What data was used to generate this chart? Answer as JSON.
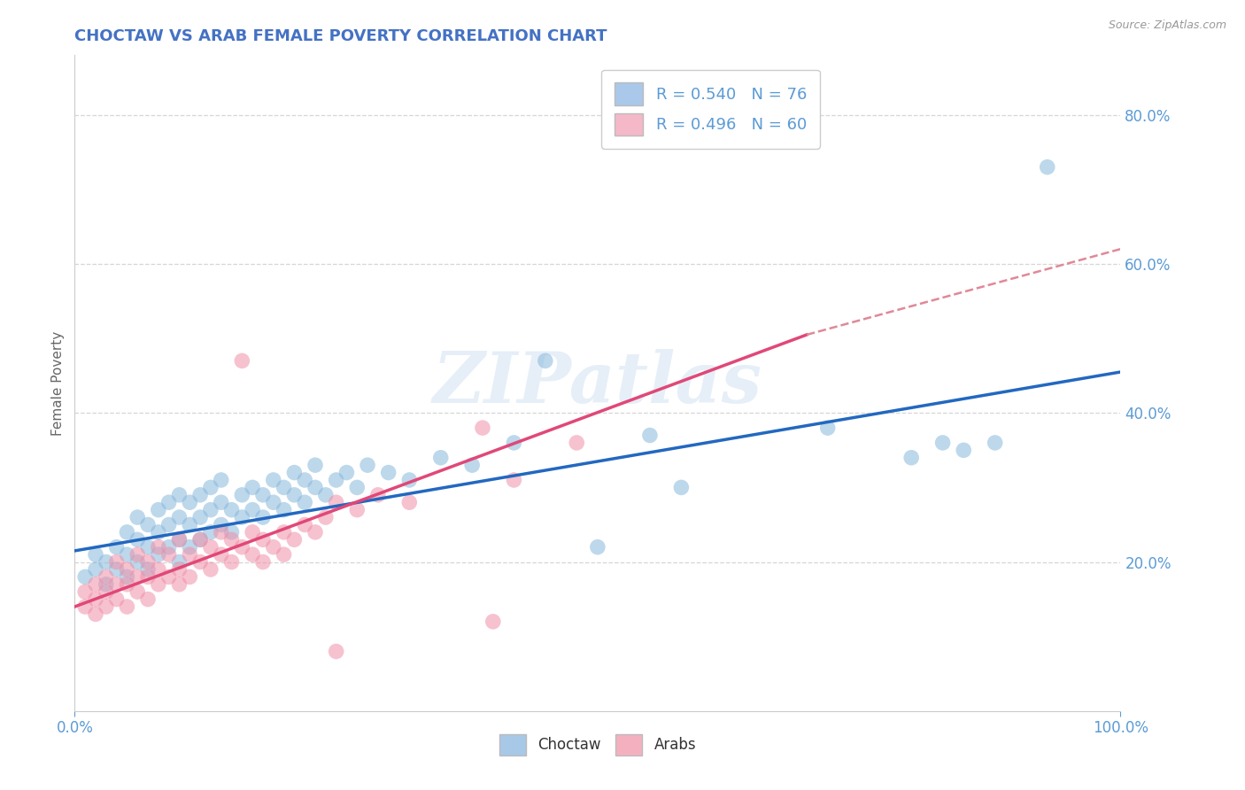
{
  "title": "CHOCTAW VS ARAB FEMALE POVERTY CORRELATION CHART",
  "source": "Source: ZipAtlas.com",
  "ylabel": "Female Poverty",
  "xlim": [
    0.0,
    1.0
  ],
  "ylim": [
    0.0,
    0.88
  ],
  "y_tick_positions": [
    0.2,
    0.4,
    0.6,
    0.8
  ],
  "legend_entries": [
    {
      "label": "R = 0.540   N = 76",
      "color": "#aac8ea"
    },
    {
      "label": "R = 0.496   N = 60",
      "color": "#f5b8c8"
    }
  ],
  "legend_names": [
    {
      "label": "Choctaw",
      "color": "#a8c8e8"
    },
    {
      "label": "Arabs",
      "color": "#f5b0c0"
    }
  ],
  "choctaw_color": "#88b8dc",
  "arab_color": "#f090a8",
  "choctaw_line_color": "#2268c0",
  "arab_line_color": "#e04878",
  "arab_dash_color": "#e08898",
  "background_color": "#ffffff",
  "grid_color": "#cccccc",
  "title_color": "#4472c4",
  "tick_color": "#5b9bd5",
  "choctaw_scatter": [
    [
      0.01,
      0.18
    ],
    [
      0.02,
      0.19
    ],
    [
      0.02,
      0.21
    ],
    [
      0.03,
      0.17
    ],
    [
      0.03,
      0.2
    ],
    [
      0.04,
      0.19
    ],
    [
      0.04,
      0.22
    ],
    [
      0.05,
      0.18
    ],
    [
      0.05,
      0.21
    ],
    [
      0.05,
      0.24
    ],
    [
      0.06,
      0.2
    ],
    [
      0.06,
      0.23
    ],
    [
      0.06,
      0.26
    ],
    [
      0.07,
      0.19
    ],
    [
      0.07,
      0.22
    ],
    [
      0.07,
      0.25
    ],
    [
      0.08,
      0.21
    ],
    [
      0.08,
      0.24
    ],
    [
      0.08,
      0.27
    ],
    [
      0.09,
      0.22
    ],
    [
      0.09,
      0.25
    ],
    [
      0.09,
      0.28
    ],
    [
      0.1,
      0.2
    ],
    [
      0.1,
      0.23
    ],
    [
      0.1,
      0.26
    ],
    [
      0.1,
      0.29
    ],
    [
      0.11,
      0.22
    ],
    [
      0.11,
      0.25
    ],
    [
      0.11,
      0.28
    ],
    [
      0.12,
      0.23
    ],
    [
      0.12,
      0.26
    ],
    [
      0.12,
      0.29
    ],
    [
      0.13,
      0.24
    ],
    [
      0.13,
      0.27
    ],
    [
      0.13,
      0.3
    ],
    [
      0.14,
      0.25
    ],
    [
      0.14,
      0.28
    ],
    [
      0.14,
      0.31
    ],
    [
      0.15,
      0.24
    ],
    [
      0.15,
      0.27
    ],
    [
      0.16,
      0.26
    ],
    [
      0.16,
      0.29
    ],
    [
      0.17,
      0.27
    ],
    [
      0.17,
      0.3
    ],
    [
      0.18,
      0.26
    ],
    [
      0.18,
      0.29
    ],
    [
      0.19,
      0.28
    ],
    [
      0.19,
      0.31
    ],
    [
      0.2,
      0.27
    ],
    [
      0.2,
      0.3
    ],
    [
      0.21,
      0.29
    ],
    [
      0.21,
      0.32
    ],
    [
      0.22,
      0.28
    ],
    [
      0.22,
      0.31
    ],
    [
      0.23,
      0.3
    ],
    [
      0.23,
      0.33
    ],
    [
      0.24,
      0.29
    ],
    [
      0.25,
      0.31
    ],
    [
      0.26,
      0.32
    ],
    [
      0.27,
      0.3
    ],
    [
      0.28,
      0.33
    ],
    [
      0.3,
      0.32
    ],
    [
      0.32,
      0.31
    ],
    [
      0.35,
      0.34
    ],
    [
      0.38,
      0.33
    ],
    [
      0.42,
      0.36
    ],
    [
      0.45,
      0.47
    ],
    [
      0.5,
      0.22
    ],
    [
      0.55,
      0.37
    ],
    [
      0.58,
      0.3
    ],
    [
      0.72,
      0.38
    ],
    [
      0.8,
      0.34
    ],
    [
      0.83,
      0.36
    ],
    [
      0.85,
      0.35
    ],
    [
      0.88,
      0.36
    ],
    [
      0.93,
      0.73
    ]
  ],
  "arab_scatter": [
    [
      0.01,
      0.16
    ],
    [
      0.01,
      0.14
    ],
    [
      0.02,
      0.17
    ],
    [
      0.02,
      0.15
    ],
    [
      0.02,
      0.13
    ],
    [
      0.03,
      0.16
    ],
    [
      0.03,
      0.14
    ],
    [
      0.03,
      0.18
    ],
    [
      0.04,
      0.15
    ],
    [
      0.04,
      0.17
    ],
    [
      0.04,
      0.2
    ],
    [
      0.05,
      0.14
    ],
    [
      0.05,
      0.17
    ],
    [
      0.05,
      0.19
    ],
    [
      0.06,
      0.16
    ],
    [
      0.06,
      0.18
    ],
    [
      0.06,
      0.21
    ],
    [
      0.07,
      0.15
    ],
    [
      0.07,
      0.18
    ],
    [
      0.07,
      0.2
    ],
    [
      0.08,
      0.17
    ],
    [
      0.08,
      0.19
    ],
    [
      0.08,
      0.22
    ],
    [
      0.09,
      0.18
    ],
    [
      0.09,
      0.21
    ],
    [
      0.1,
      0.17
    ],
    [
      0.1,
      0.19
    ],
    [
      0.1,
      0.23
    ],
    [
      0.11,
      0.18
    ],
    [
      0.11,
      0.21
    ],
    [
      0.12,
      0.2
    ],
    [
      0.12,
      0.23
    ],
    [
      0.13,
      0.19
    ],
    [
      0.13,
      0.22
    ],
    [
      0.14,
      0.21
    ],
    [
      0.14,
      0.24
    ],
    [
      0.15,
      0.2
    ],
    [
      0.15,
      0.23
    ],
    [
      0.16,
      0.22
    ],
    [
      0.16,
      0.47
    ],
    [
      0.17,
      0.21
    ],
    [
      0.17,
      0.24
    ],
    [
      0.18,
      0.2
    ],
    [
      0.18,
      0.23
    ],
    [
      0.19,
      0.22
    ],
    [
      0.2,
      0.21
    ],
    [
      0.2,
      0.24
    ],
    [
      0.21,
      0.23
    ],
    [
      0.22,
      0.25
    ],
    [
      0.23,
      0.24
    ],
    [
      0.24,
      0.26
    ],
    [
      0.25,
      0.28
    ],
    [
      0.27,
      0.27
    ],
    [
      0.29,
      0.29
    ],
    [
      0.32,
      0.28
    ],
    [
      0.39,
      0.38
    ],
    [
      0.42,
      0.31
    ],
    [
      0.48,
      0.36
    ],
    [
      0.25,
      0.08
    ],
    [
      0.4,
      0.12
    ]
  ],
  "choctaw_line": {
    "x0": 0.0,
    "y0": 0.215,
    "x1": 1.0,
    "y1": 0.455
  },
  "arab_solid_line": {
    "x0": 0.0,
    "y0": 0.14,
    "x1": 0.7,
    "y1": 0.505
  },
  "arab_dash_line": {
    "x0": 0.7,
    "y0": 0.505,
    "x1": 1.0,
    "y1": 0.62
  }
}
